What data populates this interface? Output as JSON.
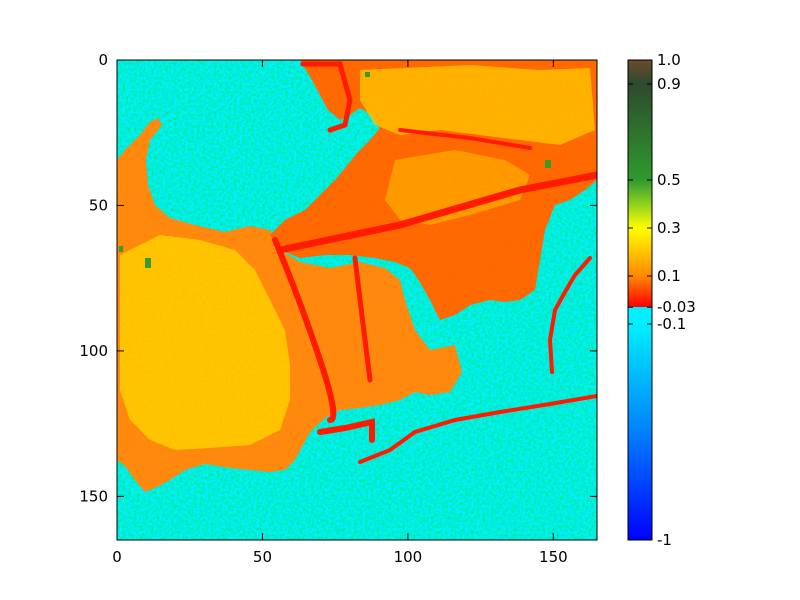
{
  "chart_data": {
    "type": "heatmap",
    "title": "",
    "xlabel": "",
    "ylabel": "",
    "x_range": [
      0,
      165
    ],
    "y_range": [
      0,
      165
    ],
    "y_inverted": true,
    "grid": false,
    "x_ticks": [
      {
        "value": 0,
        "label": "0"
      },
      {
        "value": 50,
        "label": "50"
      },
      {
        "value": 100,
        "label": "100"
      },
      {
        "value": 150,
        "label": "150"
      }
    ],
    "y_ticks": [
      {
        "value": 0,
        "label": "0"
      },
      {
        "value": 50,
        "label": "50"
      },
      {
        "value": 100,
        "label": "100"
      },
      {
        "value": 150,
        "label": "150"
      }
    ],
    "colorbar": {
      "min": -1,
      "max": 1.0,
      "ticks": [
        {
          "value": 1.0,
          "label": "1.0"
        },
        {
          "value": 0.9,
          "label": "0.9"
        },
        {
          "value": 0.5,
          "label": "0.5"
        },
        {
          "value": 0.3,
          "label": "0.3"
        },
        {
          "value": 0.1,
          "label": "0.1"
        },
        {
          "value": -0.03,
          "label": "-0.03"
        },
        {
          "value": -0.1,
          "label": "-0.1"
        },
        {
          "value": -1,
          "label": "-1"
        }
      ],
      "stops": [
        {
          "value": -1,
          "color": "#0000ff"
        },
        {
          "value": -0.55,
          "color": "#0080ff"
        },
        {
          "value": -0.1,
          "color": "#00f0ff"
        },
        {
          "value": -0.03,
          "color": "#00f0ff"
        },
        {
          "value": -0.029,
          "color": "#ff0000"
        },
        {
          "value": 0.1,
          "color": "#ff8800"
        },
        {
          "value": 0.3,
          "color": "#ffff00"
        },
        {
          "value": 0.4,
          "color": "#90d020"
        },
        {
          "value": 0.5,
          "color": "#2e9a2e"
        },
        {
          "value": 0.9,
          "color": "#2e4a2e"
        },
        {
          "value": 1.0,
          "color": "#6a4a2a"
        }
      ]
    },
    "regions": {
      "water_value": -0.3,
      "land_value": 0.15,
      "bright_land_value": 0.27,
      "vegetation_value": 0.5
    }
  }
}
